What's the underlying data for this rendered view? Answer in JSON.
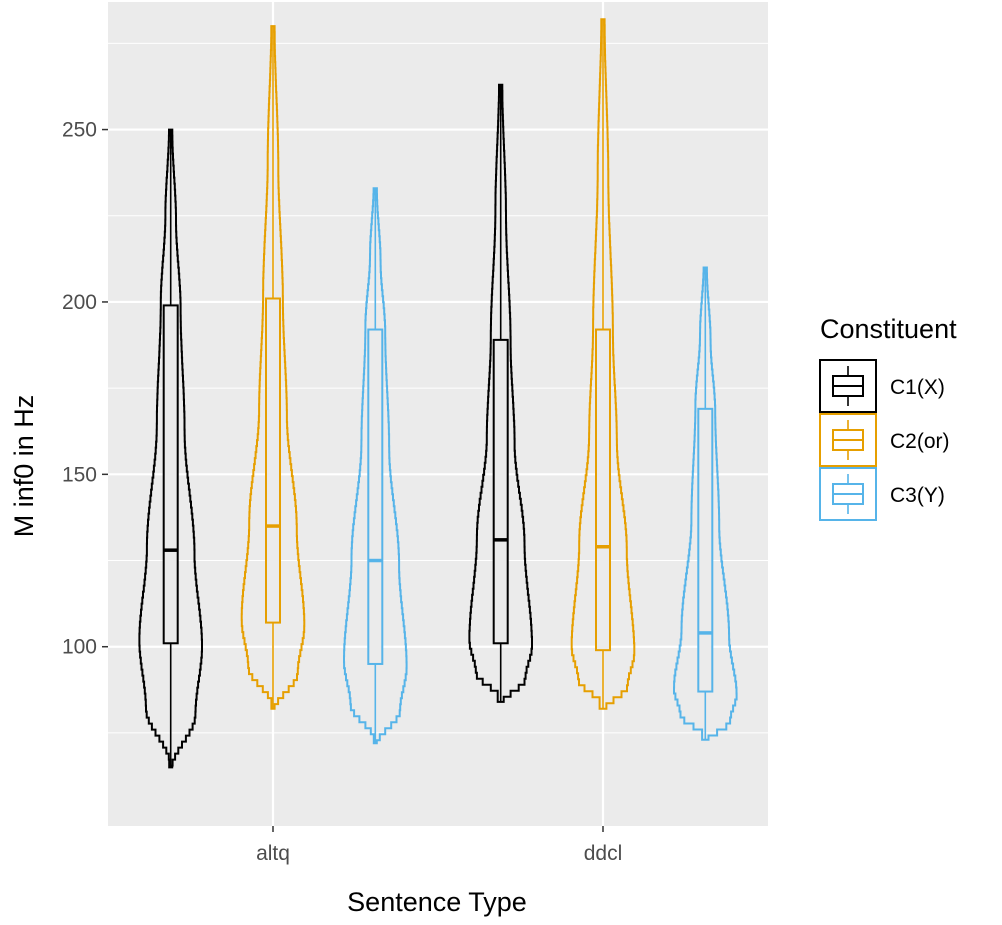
{
  "chart_data": {
    "type": "violin",
    "title": "",
    "xlabel": "Sentence Type",
    "ylabel": "M inf0 in Hz",
    "categories": [
      "altq",
      "ddcl"
    ],
    "ylim": [
      48,
      287
    ],
    "yticks": [
      100,
      150,
      200,
      250
    ],
    "grid": true,
    "legend": {
      "title": "Constituent",
      "position": "right"
    },
    "series": [
      {
        "name": "C1(X)",
        "color": "#000000",
        "groups": [
          {
            "category": "altq",
            "min": 65,
            "max": 250,
            "q1": 101,
            "median": 128,
            "q3": 199
          },
          {
            "category": "ddcl",
            "min": 84,
            "max": 263,
            "q1": 101,
            "median": 131,
            "q3": 189
          }
        ]
      },
      {
        "name": "C2(or)",
        "color": "#E69F00",
        "groups": [
          {
            "category": "altq",
            "min": 82,
            "max": 280,
            "q1": 107,
            "median": 135,
            "q3": 201
          },
          {
            "category": "ddcl",
            "min": 82,
            "max": 282,
            "q1": 99,
            "median": 129,
            "q3": 192
          }
        ]
      },
      {
        "name": "C3(Y)",
        "color": "#56B4E9",
        "groups": [
          {
            "category": "altq",
            "min": 72,
            "max": 233,
            "q1": 95,
            "median": 125,
            "q3": 192
          },
          {
            "category": "ddcl",
            "min": 73,
            "max": 210,
            "q1": 87,
            "median": 104,
            "q3": 169
          }
        ]
      }
    ]
  }
}
